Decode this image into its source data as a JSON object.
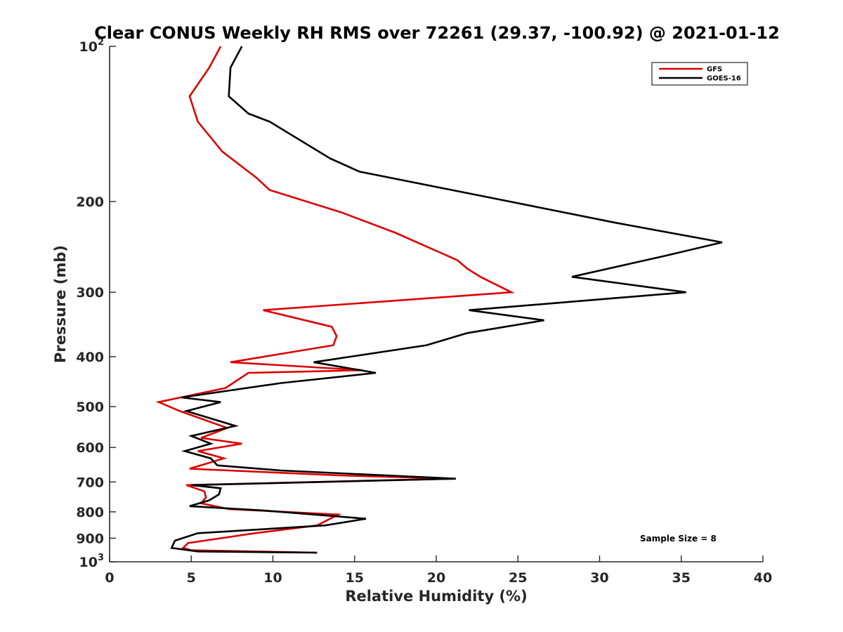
{
  "chart_data": {
    "type": "line",
    "title": "Clear CONUS Weekly RH RMS over 72261 (29.37, -100.92) @ 2021-01-12",
    "xlabel": "Relative Humidity (%)",
    "ylabel": "Pressure (mb)",
    "xlim": [
      0,
      40
    ],
    "ylim": [
      100,
      1000
    ],
    "y_scale": "log",
    "y_reversed": true,
    "x_ticks": [
      0,
      5,
      10,
      15,
      20,
      25,
      30,
      35,
      40
    ],
    "y_ticks": [
      {
        "value": 100,
        "base": "10",
        "exp": "2"
      },
      {
        "value": 200,
        "label": "200"
      },
      {
        "value": 300,
        "label": "300"
      },
      {
        "value": 400,
        "label": "400"
      },
      {
        "value": 500,
        "label": "500"
      },
      {
        "value": 600,
        "label": "600"
      },
      {
        "value": 700,
        "label": "700"
      },
      {
        "value": 800,
        "label": "800"
      },
      {
        "value": 900,
        "label": "900"
      },
      {
        "value": 1000,
        "base": "10",
        "exp": "3"
      }
    ],
    "legend_position": "top-right",
    "annotation": "Sample Size = 8",
    "series": [
      {
        "name": "GFS",
        "color": "#dd0000",
        "points": [
          [
            6.8,
            100
          ],
          [
            6.1,
            110
          ],
          [
            4.9,
            125
          ],
          [
            5.4,
            140
          ],
          [
            6.9,
            160
          ],
          [
            9.0,
            180
          ],
          [
            9.8,
            190
          ],
          [
            14.2,
            210
          ],
          [
            17.5,
            230
          ],
          [
            21.3,
            260
          ],
          [
            21.9,
            270
          ],
          [
            22.7,
            280
          ],
          [
            24.6,
            300
          ],
          [
            9.4,
            325
          ],
          [
            13.6,
            350
          ],
          [
            13.9,
            365
          ],
          [
            13.7,
            380
          ],
          [
            7.4,
            410
          ],
          [
            15.5,
            425
          ],
          [
            8.5,
            430
          ],
          [
            7.1,
            460
          ],
          [
            3.0,
            490
          ],
          [
            4.3,
            510
          ],
          [
            7.2,
            550
          ],
          [
            5.6,
            575
          ],
          [
            8.1,
            590
          ],
          [
            5.4,
            610
          ],
          [
            7.0,
            630
          ],
          [
            4.9,
            660
          ],
          [
            14.2,
            680
          ],
          [
            21.0,
            690
          ],
          [
            4.7,
            710
          ],
          [
            5.8,
            730
          ],
          [
            5.9,
            750
          ],
          [
            5.6,
            770
          ],
          [
            7.3,
            790
          ],
          [
            14.0,
            810
          ],
          [
            12.7,
            850
          ],
          [
            8.9,
            880
          ],
          [
            4.8,
            920
          ],
          [
            4.5,
            940
          ],
          [
            5.0,
            950
          ],
          [
            12.7,
            960
          ]
        ]
      },
      {
        "name": "GOES-16",
        "color": "#000000",
        "points": [
          [
            8.1,
            100
          ],
          [
            7.4,
            110
          ],
          [
            7.3,
            125
          ],
          [
            8.5,
            135
          ],
          [
            9.8,
            140
          ],
          [
            13.5,
            165
          ],
          [
            15.3,
            175
          ],
          [
            24.5,
            200
          ],
          [
            31.0,
            220
          ],
          [
            37.5,
            240
          ],
          [
            34.0,
            255
          ],
          [
            28.3,
            280
          ],
          [
            35.3,
            300
          ],
          [
            22.0,
            325
          ],
          [
            26.6,
            340
          ],
          [
            21.9,
            360
          ],
          [
            19.4,
            380
          ],
          [
            12.5,
            410
          ],
          [
            16.3,
            430
          ],
          [
            10.5,
            450
          ],
          [
            4.4,
            480
          ],
          [
            6.8,
            490
          ],
          [
            4.7,
            510
          ],
          [
            7.7,
            545
          ],
          [
            5.0,
            570
          ],
          [
            6.2,
            590
          ],
          [
            4.6,
            610
          ],
          [
            6.2,
            630
          ],
          [
            6.6,
            650
          ],
          [
            10.5,
            665
          ],
          [
            21.2,
            690
          ],
          [
            5.0,
            710
          ],
          [
            6.8,
            720
          ],
          [
            6.7,
            740
          ],
          [
            6.1,
            760
          ],
          [
            4.9,
            780
          ],
          [
            9.4,
            795
          ],
          [
            15.7,
            825
          ],
          [
            13.2,
            850
          ],
          [
            5.4,
            880
          ],
          [
            4.0,
            910
          ],
          [
            3.8,
            940
          ],
          [
            5.4,
            955
          ],
          [
            12.7,
            960
          ]
        ]
      }
    ]
  }
}
